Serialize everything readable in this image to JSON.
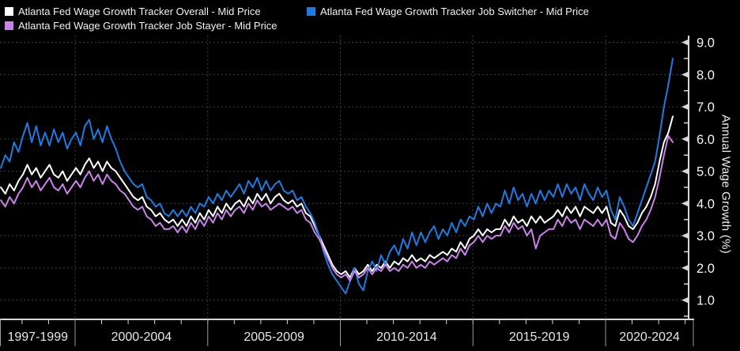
{
  "legend": {
    "items": [
      {
        "id": "overall",
        "label": "Atlanta Fed Wage Growth Tracker Overall - Mid Price",
        "color": "#ffffff"
      },
      {
        "id": "job-switcher",
        "label": "Atlanta Fed Wage Growth Tracker Job Switcher - Mid Price",
        "color": "#1f7be0"
      },
      {
        "id": "job-stayer",
        "label": "Atlanta Fed Wage Growth Tracker Job Stayer - Mid Price",
        "color": "#ca82ea"
      }
    ]
  },
  "axes": {
    "y": {
      "title": "Annual Wage Growth (%)",
      "tick_values": [
        1,
        2,
        3,
        4,
        5,
        6,
        7,
        8,
        9
      ],
      "tick_labels": [
        "1.0",
        "2.0",
        "3.0",
        "4.0",
        "5.0",
        "6.0",
        "7.0",
        "8.0",
        "9.0"
      ],
      "minor_step": 0.5,
      "side": "right"
    },
    "x": {
      "period_labels": [
        "1997-1999",
        "2000-2004",
        "2005-2009",
        "2010-2014",
        "2015-2019",
        "2020-2024"
      ],
      "divider_years": [
        2000,
        2005,
        2010,
        2015,
        2020
      ],
      "year_tick_start": 1998,
      "year_tick_end": 2023
    }
  },
  "colors": {
    "background": "#000000",
    "grid": "#3f3f3f",
    "axis": "#d8d8d8",
    "tick_label": "#f5f5f5",
    "period_label": "#e8e8e8"
  },
  "chart_data": {
    "type": "line",
    "title": "",
    "xlabel": "",
    "ylabel": "Annual Wage Growth (%)",
    "grid": "dotted",
    "legend_position": "top-left",
    "x_start": 1997.2,
    "x_step": 0.16667,
    "xlim": [
      1997.17,
      2023.2
    ],
    "ylim": [
      0.4,
      9.2
    ],
    "series": [
      {
        "id": "overall",
        "name": "Atlanta Fed Wage Growth Tracker Overall - Mid Price",
        "color": "#ffffff",
        "values": [
          4.5,
          4.3,
          4.6,
          4.4,
          4.7,
          4.9,
          5.2,
          4.9,
          5.1,
          4.8,
          5.0,
          5.2,
          4.9,
          4.8,
          5.0,
          4.7,
          4.9,
          5.1,
          4.9,
          5.2,
          5.4,
          5.1,
          5.3,
          5.0,
          5.3,
          5.1,
          5.0,
          4.8,
          4.6,
          4.4,
          4.2,
          4.1,
          4.2,
          3.9,
          3.8,
          3.6,
          3.7,
          3.5,
          3.4,
          3.5,
          3.3,
          3.5,
          3.3,
          3.6,
          3.4,
          3.7,
          3.5,
          3.8,
          3.6,
          3.9,
          3.7,
          4.0,
          3.8,
          4.0,
          4.1,
          3.9,
          4.2,
          4.0,
          4.3,
          4.1,
          4.3,
          4.0,
          4.2,
          4.3,
          4.1,
          4.0,
          4.1,
          3.9,
          4.0,
          3.7,
          3.6,
          3.3,
          3.0,
          2.7,
          2.4,
          2.1,
          1.9,
          1.8,
          1.9,
          1.7,
          2.0,
          1.8,
          1.9,
          2.1,
          1.9,
          2.1,
          2.0,
          2.2,
          2.0,
          2.2,
          2.1,
          2.3,
          2.2,
          2.4,
          2.2,
          2.3,
          2.2,
          2.4,
          2.3,
          2.4,
          2.5,
          2.4,
          2.6,
          2.5,
          2.8,
          2.6,
          2.9,
          3.0,
          3.2,
          3.0,
          3.2,
          3.1,
          3.2,
          3.2,
          3.5,
          3.3,
          3.6,
          3.4,
          3.5,
          3.3,
          3.6,
          3.4,
          3.6,
          3.4,
          3.5,
          3.6,
          3.8,
          3.6,
          3.9,
          3.7,
          3.9,
          3.6,
          3.9,
          3.8,
          3.7,
          3.9,
          3.7,
          3.9,
          3.4,
          3.3,
          3.8,
          3.6,
          3.3,
          3.2,
          3.4,
          3.7,
          3.9,
          4.2,
          4.6,
          5.3,
          5.9,
          6.2,
          6.7
        ]
      },
      {
        "id": "job-switcher",
        "name": "Atlanta Fed Wage Growth Tracker Job Switcher - Mid Price",
        "color": "#1f7be0",
        "values": [
          5.1,
          5.5,
          5.3,
          5.9,
          5.6,
          6.1,
          6.5,
          5.9,
          6.4,
          5.8,
          6.2,
          5.8,
          6.3,
          5.9,
          6.2,
          5.7,
          6.0,
          6.2,
          5.8,
          6.4,
          6.6,
          6.0,
          6.3,
          5.9,
          6.4,
          6.0,
          5.7,
          5.3,
          5.0,
          4.8,
          4.6,
          4.5,
          4.6,
          4.2,
          4.1,
          3.9,
          4.0,
          3.7,
          3.6,
          3.8,
          3.6,
          3.8,
          3.6,
          3.9,
          3.7,
          4.0,
          3.9,
          4.2,
          4.0,
          4.3,
          4.1,
          4.4,
          4.2,
          4.4,
          4.6,
          4.3,
          4.7,
          4.5,
          4.8,
          4.4,
          4.7,
          4.4,
          4.6,
          4.7,
          4.4,
          4.3,
          4.4,
          4.1,
          4.2,
          3.9,
          3.7,
          3.4,
          3.0,
          2.5,
          2.1,
          1.8,
          1.6,
          1.4,
          1.2,
          1.6,
          2.0,
          1.5,
          1.3,
          1.9,
          2.2,
          1.9,
          2.4,
          2.1,
          2.5,
          2.7,
          2.4,
          2.9,
          2.6,
          3.1,
          2.7,
          3.1,
          2.8,
          3.1,
          3.3,
          2.9,
          3.2,
          3.0,
          3.4,
          3.1,
          3.5,
          3.3,
          3.6,
          3.5,
          3.9,
          3.6,
          4.0,
          3.7,
          4.0,
          3.9,
          4.4,
          4.0,
          4.5,
          4.1,
          4.3,
          3.9,
          4.3,
          4.0,
          4.4,
          4.1,
          4.4,
          4.2,
          4.6,
          4.2,
          4.6,
          4.3,
          4.5,
          4.1,
          4.6,
          4.3,
          4.1,
          4.5,
          4.2,
          4.4,
          3.8,
          3.5,
          4.2,
          3.9,
          3.5,
          3.3,
          3.7,
          4.1,
          4.5,
          4.9,
          5.3,
          6.1,
          7.0,
          7.7,
          8.5
        ]
      },
      {
        "id": "job-stayer",
        "name": "Atlanta Fed Wage Growth Tracker Job Stayer - Mid Price",
        "color": "#ca82ea",
        "values": [
          4.1,
          3.9,
          4.2,
          4.0,
          4.3,
          4.5,
          4.8,
          4.5,
          4.7,
          4.4,
          4.6,
          4.8,
          4.5,
          4.4,
          4.6,
          4.3,
          4.5,
          4.7,
          4.5,
          4.8,
          5.0,
          4.7,
          4.9,
          4.6,
          4.9,
          4.7,
          4.6,
          4.4,
          4.3,
          4.1,
          3.9,
          3.8,
          3.9,
          3.6,
          3.5,
          3.3,
          3.4,
          3.2,
          3.2,
          3.3,
          3.1,
          3.3,
          3.1,
          3.4,
          3.2,
          3.5,
          3.3,
          3.6,
          3.4,
          3.7,
          3.5,
          3.8,
          3.6,
          3.8,
          3.9,
          3.7,
          4.0,
          3.8,
          4.1,
          3.9,
          4.0,
          3.8,
          3.9,
          4.0,
          3.9,
          3.8,
          3.9,
          3.7,
          3.8,
          3.5,
          3.4,
          3.1,
          2.9,
          2.6,
          2.3,
          2.0,
          1.8,
          1.7,
          1.8,
          1.6,
          1.9,
          1.7,
          1.8,
          2.0,
          1.8,
          2.0,
          1.9,
          2.1,
          1.9,
          2.0,
          1.9,
          2.1,
          2.0,
          2.2,
          2.0,
          2.1,
          2.0,
          2.2,
          2.1,
          2.2,
          2.3,
          2.2,
          2.4,
          2.3,
          2.6,
          2.4,
          2.7,
          2.8,
          3.0,
          2.8,
          3.0,
          2.9,
          3.0,
          3.0,
          3.3,
          3.1,
          3.4,
          3.2,
          3.3,
          3.0,
          3.2,
          2.6,
          3.0,
          3.1,
          3.2,
          3.2,
          3.5,
          3.3,
          3.6,
          3.4,
          3.5,
          3.2,
          3.5,
          3.4,
          3.3,
          3.5,
          3.3,
          3.5,
          3.0,
          2.9,
          3.4,
          3.2,
          2.9,
          2.8,
          3.0,
          3.3,
          3.5,
          3.8,
          4.2,
          4.8,
          5.5,
          6.1,
          5.9
        ]
      }
    ]
  }
}
